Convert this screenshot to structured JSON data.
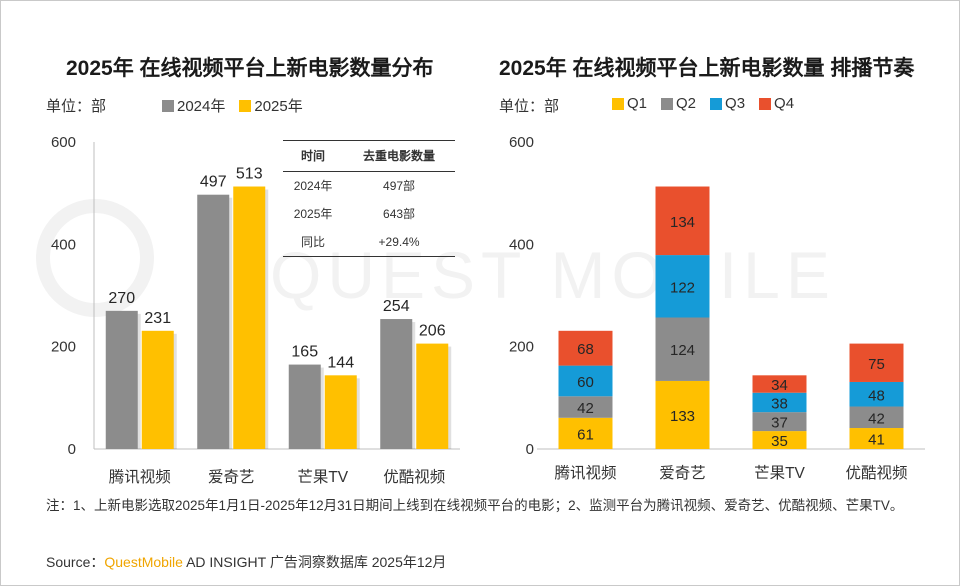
{
  "watermark": "QUEST MOBILE",
  "chart_data": [
    {
      "type": "bar",
      "title": "2025年 在线视频平台上新电影数量分布",
      "unit_label": "单位：部",
      "categories": [
        "腾讯视频",
        "爱奇艺",
        "芒果TV",
        "优酷视频"
      ],
      "series": [
        {
          "name": "2024年",
          "color": "#8c8c8c",
          "values": [
            270,
            497,
            165,
            254
          ]
        },
        {
          "name": "2025年",
          "color": "#ffc000",
          "values": [
            231,
            513,
            144,
            206
          ]
        }
      ],
      "ylim": [
        0,
        600
      ],
      "yticks": [
        0,
        200,
        400,
        600
      ],
      "xlabel": "",
      "ylabel": "",
      "grid": false,
      "summary_table": {
        "headers": [
          "时间",
          "去重电影数量"
        ],
        "rows": [
          [
            "2024年",
            "497部"
          ],
          [
            "2025年",
            "643部"
          ],
          [
            "同比",
            "+29.4%"
          ]
        ]
      }
    },
    {
      "type": "stacked-bar",
      "title": "2025年 在线视频平台上新电影数量 排播节奏",
      "unit_label": "单位：部",
      "categories": [
        "腾讯视频",
        "爱奇艺",
        "芒果TV",
        "优酷视频"
      ],
      "series": [
        {
          "name": "Q1",
          "color": "#ffc000",
          "values": [
            61,
            133,
            35,
            41
          ]
        },
        {
          "name": "Q2",
          "color": "#8c8c8c",
          "values": [
            42,
            124,
            37,
            42
          ]
        },
        {
          "name": "Q3",
          "color": "#159bd7",
          "values": [
            60,
            122,
            38,
            48
          ]
        },
        {
          "name": "Q4",
          "color": "#e9502d",
          "values": [
            68,
            134,
            34,
            75
          ]
        }
      ],
      "ylim": [
        0,
        600
      ],
      "yticks": [
        0,
        200,
        400,
        600
      ],
      "xlabel": "",
      "ylabel": "",
      "grid": false
    }
  ],
  "note": "注：1、上新电影选取2025年1月1日-2025年12月31日期间上线到在线视频平台的电影；2、监测平台为腾讯视频、爱奇艺、优酷视频、芒果TV。",
  "source": {
    "label": "Source：",
    "brand": "QuestMobile",
    "rest": " AD INSIGHT 广告洞察数据库 2025年12月"
  }
}
